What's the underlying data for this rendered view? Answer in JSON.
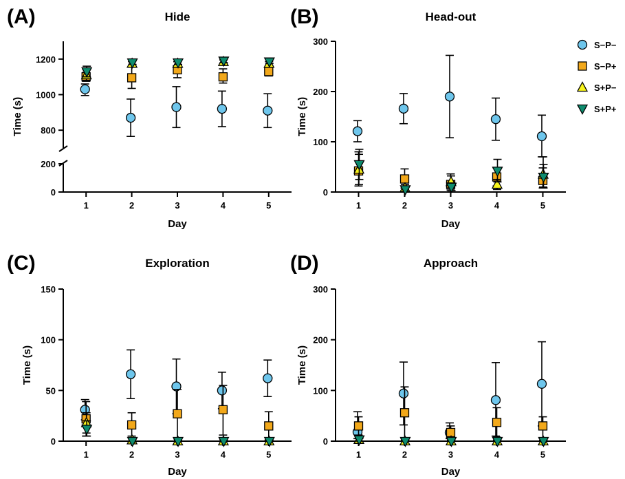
{
  "legend": {
    "placement": "top-right",
    "entries": [
      {
        "name": "S−P−",
        "color": "#6EC6EC",
        "marker": "circle"
      },
      {
        "name": "S−P+",
        "color": "#F2A81A",
        "marker": "square"
      },
      {
        "name": "S+P−",
        "color": "#F7F41C",
        "marker": "triangle-up"
      },
      {
        "name": "S+P+",
        "color": "#0E8C6E",
        "marker": "triangle-down"
      }
    ]
  },
  "chart_data": [
    {
      "type": "scatter",
      "panel": "(A)",
      "title": "Hide",
      "xlabel": "Day",
      "ylabel": "Time (s)",
      "x": [
        1,
        2,
        3,
        4,
        5
      ],
      "xlim": [
        0.5,
        5.5
      ],
      "ylim": [
        0,
        1300
      ],
      "axis_break": [
        200,
        700
      ],
      "y_ticks": [
        0,
        200,
        800,
        1000,
        1200
      ],
      "grid": false,
      "series": [
        {
          "name": "S−P−",
          "values": [
            1030,
            870,
            930,
            920,
            910
          ],
          "err_low": [
            995,
            765,
            815,
            820,
            815
          ],
          "err_high": [
            1060,
            975,
            1045,
            1020,
            1005
          ]
        },
        {
          "name": "S−P+",
          "values": [
            1100,
            1095,
            1140,
            1100,
            1130
          ],
          "err_low": [
            1075,
            1035,
            1095,
            1065,
            1105
          ],
          "err_high": [
            1125,
            1155,
            1185,
            1145,
            1160
          ]
        },
        {
          "name": "S+P−",
          "values": [
            1110,
            1175,
            1175,
            1185,
            1175
          ],
          "err_low": [
            1080,
            1165,
            1165,
            1175,
            1165
          ],
          "err_high": [
            1140,
            1185,
            1185,
            1195,
            1185
          ]
        },
        {
          "name": "S+P+",
          "values": [
            1130,
            1180,
            1180,
            1190,
            1185
          ],
          "err_low": [
            1100,
            1170,
            1170,
            1180,
            1175
          ],
          "err_high": [
            1160,
            1190,
            1190,
            1200,
            1195
          ]
        }
      ]
    },
    {
      "type": "scatter",
      "panel": "(B)",
      "title": "Head-out",
      "xlabel": "Day",
      "ylabel": "Time (s)",
      "x": [
        1,
        2,
        3,
        4,
        5
      ],
      "xlim": [
        0.5,
        5.5
      ],
      "ylim": [
        0,
        300
      ],
      "y_ticks": [
        0,
        100,
        200,
        300
      ],
      "grid": false,
      "series": [
        {
          "name": "S−P−",
          "values": [
            121,
            166,
            190,
            145,
            111
          ],
          "err_low": [
            100,
            136,
            108,
            103,
            70
          ],
          "err_high": [
            142,
            196,
            272,
            187,
            153
          ]
        },
        {
          "name": "S−P+",
          "values": [
            42,
            26,
            15,
            30,
            23
          ],
          "err_low": [
            12,
            8,
            4,
            12,
            8
          ],
          "err_high": [
            80,
            46,
            36,
            48,
            48
          ]
        },
        {
          "name": "S+P−",
          "values": [
            45,
            8,
            20,
            15,
            35
          ],
          "err_low": [
            15,
            2,
            8,
            5,
            10
          ],
          "err_high": [
            75,
            15,
            32,
            25,
            70
          ]
        },
        {
          "name": "S+P+",
          "values": [
            55,
            5,
            10,
            42,
            30
          ],
          "err_low": [
            25,
            1,
            3,
            20,
            8
          ],
          "err_high": [
            85,
            10,
            18,
            65,
            55
          ]
        }
      ]
    },
    {
      "type": "scatter",
      "panel": "(C)",
      "title": "Exploration",
      "xlabel": "Day",
      "ylabel": "Time (s)",
      "x": [
        1,
        2,
        3,
        4,
        5
      ],
      "xlim": [
        0.5,
        5.5
      ],
      "ylim": [
        0,
        150
      ],
      "y_ticks": [
        0,
        50,
        100,
        150
      ],
      "grid": false,
      "series": [
        {
          "name": "S−P−",
          "values": [
            31,
            66,
            54,
            50,
            62
          ],
          "err_low": [
            21,
            42,
            27,
            32,
            44
          ],
          "err_high": [
            41,
            90,
            81,
            68,
            80
          ]
        },
        {
          "name": "S−P+",
          "values": [
            22,
            16,
            27,
            31,
            15
          ],
          "err_low": [
            5,
            5,
            3,
            6,
            1
          ],
          "err_high": [
            39,
            28,
            51,
            55,
            29
          ]
        },
        {
          "name": "S+P−",
          "values": [
            18,
            1,
            0,
            0,
            0
          ],
          "err_low": [
            8,
            0,
            0,
            0,
            0
          ],
          "err_high": [
            28,
            3,
            2,
            2,
            2
          ]
        },
        {
          "name": "S+P+",
          "values": [
            12,
            0,
            0,
            0,
            0
          ],
          "err_low": [
            5,
            0,
            0,
            0,
            0
          ],
          "err_high": [
            20,
            2,
            1,
            1,
            1
          ]
        }
      ]
    },
    {
      "type": "scatter",
      "panel": "(D)",
      "title": "Approach",
      "xlabel": "Day",
      "ylabel": "Time (s)",
      "x": [
        1,
        2,
        3,
        4,
        5
      ],
      "xlim": [
        0.5,
        5.5
      ],
      "ylim": [
        0,
        300
      ],
      "y_ticks": [
        0,
        100,
        200,
        300
      ],
      "grid": false,
      "series": [
        {
          "name": "S−P−",
          "values": [
            18,
            94,
            17,
            81,
            113
          ],
          "err_low": [
            5,
            32,
            5,
            10,
            30
          ],
          "err_high": [
            58,
            156,
            36,
            155,
            196
          ]
        },
        {
          "name": "S−P+",
          "values": [
            30,
            56,
            17,
            37,
            30
          ],
          "err_low": [
            12,
            5,
            5,
            8,
            5
          ],
          "err_high": [
            48,
            107,
            30,
            66,
            48
          ]
        },
        {
          "name": "S+P−",
          "values": [
            3,
            0,
            0,
            0,
            0
          ],
          "err_low": [
            0,
            0,
            0,
            0,
            0
          ],
          "err_high": [
            6,
            2,
            2,
            2,
            2
          ]
        },
        {
          "name": "S+P+",
          "values": [
            3,
            0,
            0,
            0,
            0
          ],
          "err_low": [
            0,
            0,
            0,
            0,
            0
          ],
          "err_high": [
            5,
            1,
            1,
            1,
            1
          ]
        }
      ]
    }
  ]
}
